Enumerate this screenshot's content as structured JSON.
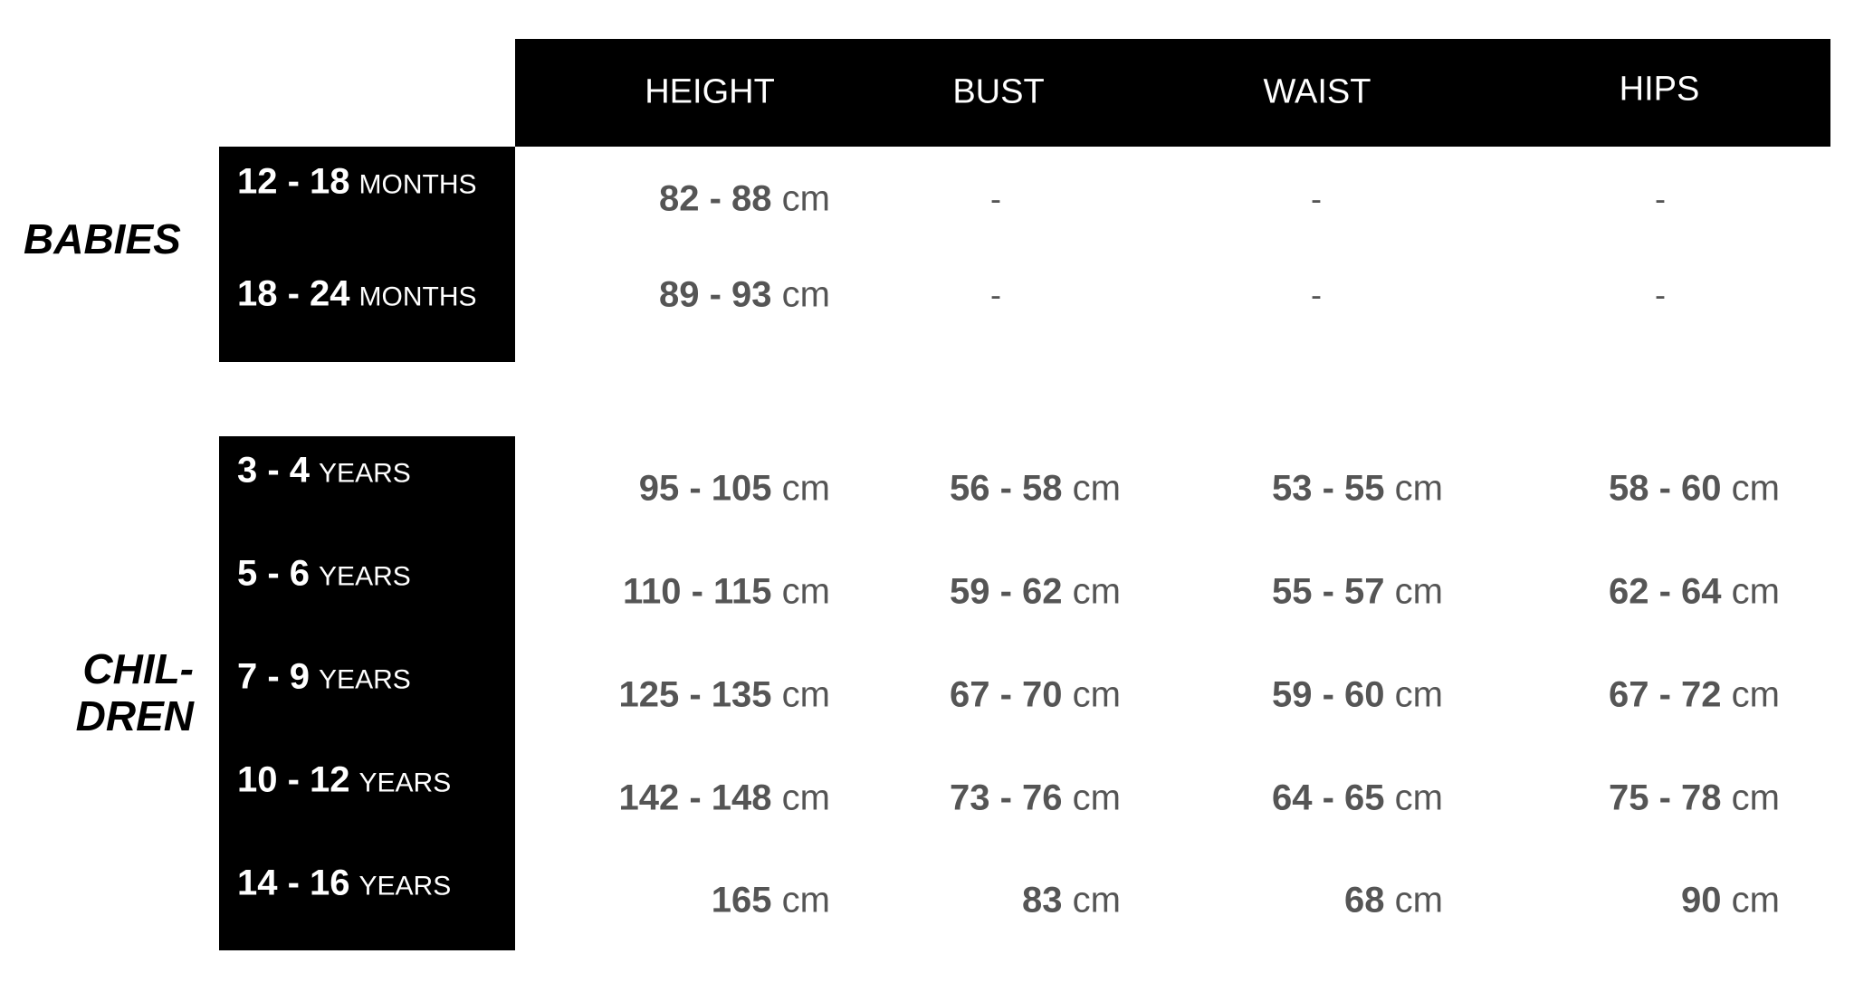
{
  "headers": [
    "HEIGHT",
    "BUST",
    "WAIST",
    "HIPS"
  ],
  "groups": {
    "babies": "BABIES",
    "children_line1": "CHIL-",
    "children_line2": "DREN"
  },
  "babies_rows": [
    {
      "range": "12 - 18",
      "unit": "MONTHS",
      "height": "82 - 88",
      "bust": "-",
      "waist": "-",
      "hips": "-"
    },
    {
      "range": "18 - 24",
      "unit": "MONTHS",
      "height": "89 - 93",
      "bust": "-",
      "waist": "-",
      "hips": "-"
    }
  ],
  "children_rows": [
    {
      "range": "3 - 4",
      "unit": "YEARS",
      "height": "95 - 105",
      "bust": "56 - 58",
      "waist": "53 - 55",
      "hips": "58 - 60"
    },
    {
      "range": "5 - 6",
      "unit": "YEARS",
      "height": "110 - 115",
      "bust": "59 - 62",
      "waist": "55 - 57",
      "hips": "62 - 64"
    },
    {
      "range": "7 - 9",
      "unit": "YEARS",
      "height": "125 - 135",
      "bust": "67 - 70",
      "waist": "59 - 60",
      "hips": "67 - 72"
    },
    {
      "range": "10 - 12",
      "unit": "YEARS",
      "height": "142 - 148",
      "bust": "73 - 76",
      "waist": "64 - 65",
      "hips": "75 - 78"
    },
    {
      "range": "14 - 16",
      "unit": "YEARS",
      "height": "165",
      "bust": "83",
      "waist": "68",
      "hips": "90"
    }
  ],
  "unit_cm": "cm",
  "colors": {
    "block": "#000000",
    "value_text": "#555555"
  }
}
